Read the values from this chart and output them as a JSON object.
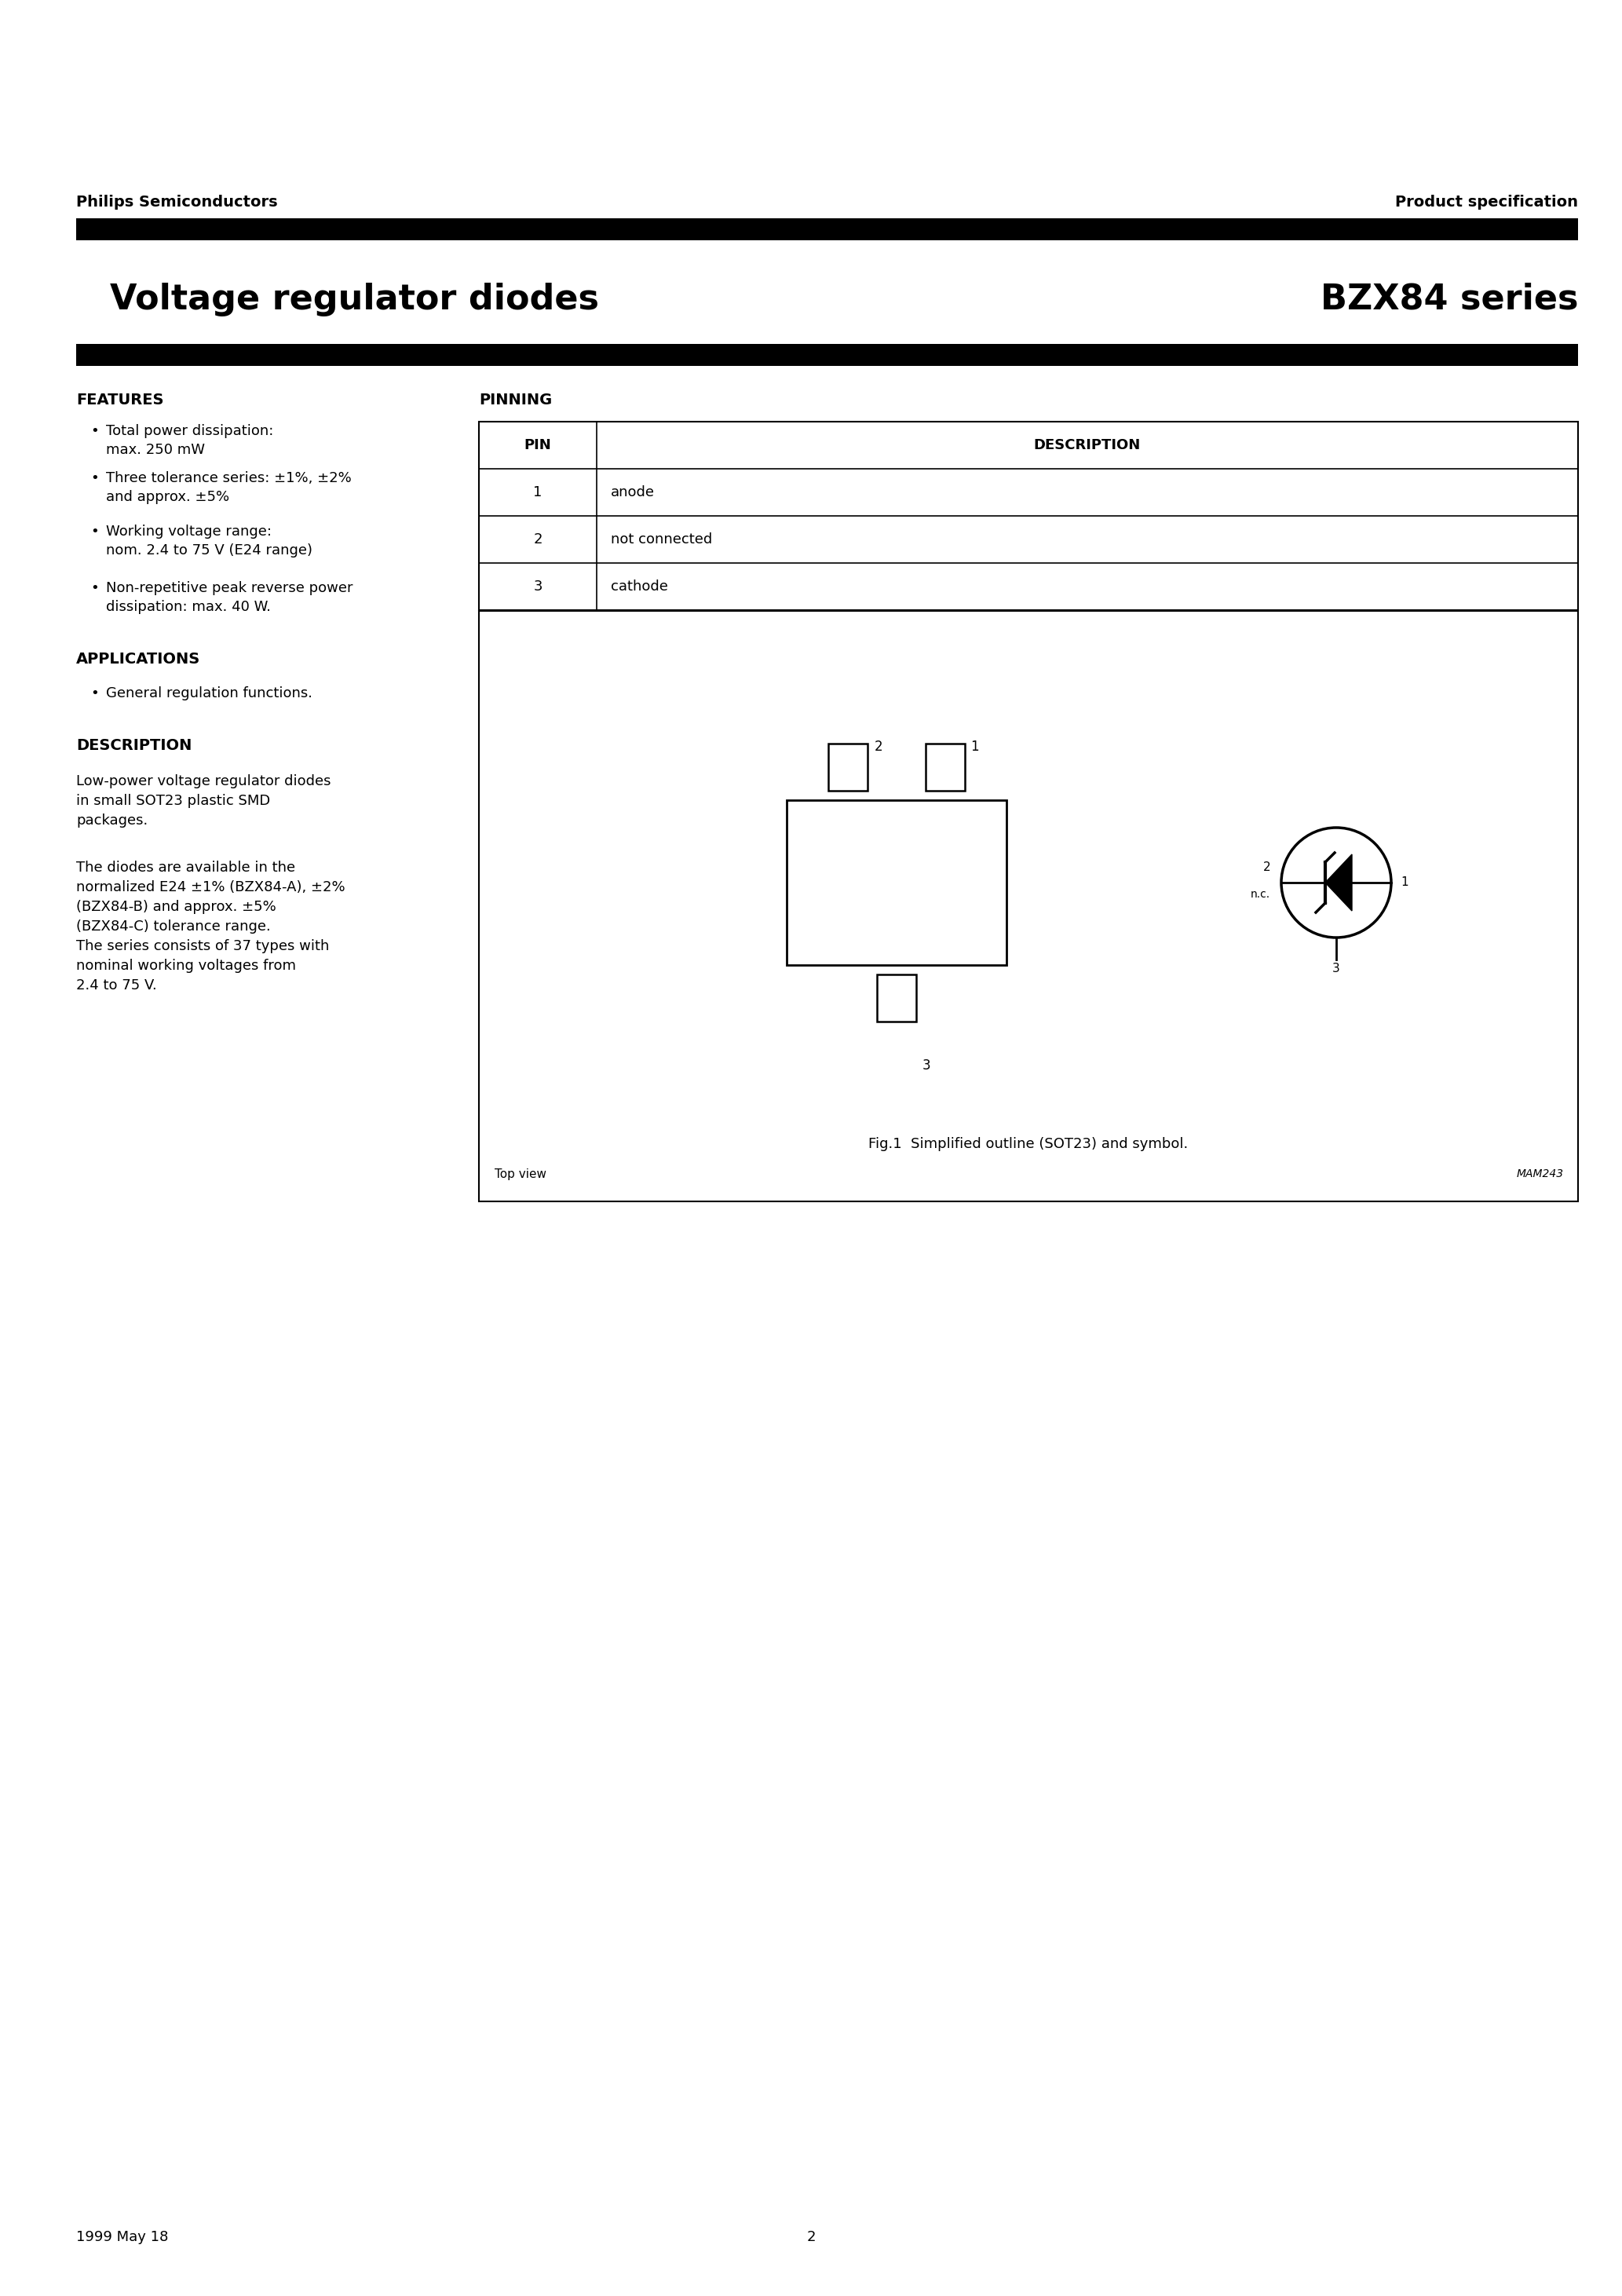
{
  "page_title_left": "Voltage regulator diodes",
  "page_title_right": "BZX84 series",
  "header_left": "Philips Semiconductors",
  "header_right": "Product specification",
  "features_title": "FEATURES",
  "features_items": [
    "Total power dissipation:\nmax. 250 mW",
    "Three tolerance series: ±1%, ±2%\nand approx. ±5%",
    "Working voltage range:\nnom. 2.4 to 75 V (E24 range)",
    "Non-repetitive peak reverse power\ndissipation: max. 40 W."
  ],
  "applications_title": "APPLICATIONS",
  "applications_items": [
    "General regulation functions."
  ],
  "description_title": "DESCRIPTION",
  "description_text1": "Low-power voltage regulator diodes\nin small SOT23 plastic SMD\npackages.",
  "description_text2": "The diodes are available in the\nnormalized E24 ±1% (BZX84-A), ±2%\n(BZX84-B) and approx. ±5%\n(BZX84-C) tolerance range.\nThe series consists of 37 types with\nnominal working voltages from\n2.4 to 75 V.",
  "pinning_title": "PINNING",
  "pin_header": [
    "PIN",
    "DESCRIPTION"
  ],
  "pin_rows": [
    [
      "1",
      "anode"
    ],
    [
      "2",
      "not connected"
    ],
    [
      "3",
      "cathode"
    ]
  ],
  "fig_caption": "Fig.1  Simplified outline (SOT23) and symbol.",
  "top_view_label": "Top view",
  "mam_label": "MAM243",
  "footer_left": "1999 May 18",
  "footer_center": "2",
  "bg_color": "#ffffff",
  "black_bar_color": "#000000",
  "text_color": "#000000"
}
